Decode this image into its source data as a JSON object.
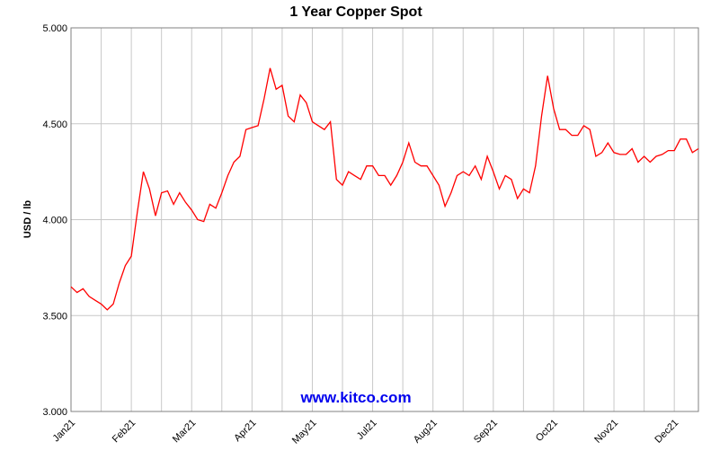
{
  "chart_data": {
    "type": "line",
    "title": "1 Year Copper Spot",
    "y_label": "USD / lb",
    "watermark": "www.kitco.com",
    "categories": [
      "Jan21",
      null,
      null,
      null,
      null,
      null,
      null,
      null,
      null,
      null,
      "Feb21",
      null,
      null,
      null,
      null,
      null,
      null,
      null,
      null,
      null,
      "Mar21",
      null,
      null,
      null,
      null,
      null,
      null,
      null,
      null,
      null,
      "Apr21",
      null,
      null,
      null,
      null,
      null,
      null,
      null,
      null,
      null,
      "May21",
      null,
      null,
      null,
      null,
      null,
      null,
      null,
      null,
      null,
      "Jul21",
      null,
      null,
      null,
      null,
      null,
      null,
      null,
      null,
      null,
      "Aug21",
      null,
      null,
      null,
      null,
      null,
      null,
      null,
      null,
      null,
      "Sep21",
      null,
      null,
      null,
      null,
      null,
      null,
      null,
      null,
      null,
      "Oct21",
      null,
      null,
      null,
      null,
      null,
      null,
      null,
      null,
      null,
      "Nov21",
      null,
      null,
      null,
      null,
      null,
      null,
      null,
      null,
      null,
      "Dec21",
      null,
      null,
      null,
      null
    ],
    "series": [
      {
        "color": "#ff0000",
        "values": [
          3.65,
          3.62,
          3.64,
          3.6,
          3.58,
          3.56,
          3.53,
          3.56,
          3.67,
          3.76,
          3.81,
          4.04,
          4.25,
          4.16,
          4.02,
          4.14,
          4.15,
          4.08,
          4.14,
          4.09,
          4.05,
          4.0,
          3.99,
          4.08,
          4.06,
          4.14,
          4.23,
          4.3,
          4.33,
          4.47,
          4.48,
          4.49,
          4.63,
          4.79,
          4.68,
          4.7,
          4.54,
          4.51,
          4.65,
          4.61,
          4.51,
          4.49,
          4.47,
          4.51,
          4.21,
          4.18,
          4.25,
          4.23,
          4.21,
          4.28,
          4.28,
          4.23,
          4.23,
          4.18,
          4.23,
          4.3,
          4.4,
          4.3,
          4.28,
          4.28,
          4.23,
          4.18,
          4.07,
          4.14,
          4.23,
          4.25,
          4.23,
          4.28,
          4.21,
          4.33,
          4.25,
          4.16,
          4.23,
          4.21,
          4.11,
          4.16,
          4.14,
          4.28,
          4.54,
          4.75,
          4.58,
          4.47,
          4.47,
          4.44,
          4.44,
          4.49,
          4.47,
          4.33,
          4.35,
          4.4,
          4.35,
          4.34,
          4.34,
          4.37,
          4.3,
          4.33,
          4.3,
          4.33,
          4.34,
          4.36,
          4.36,
          4.42,
          4.42,
          4.35,
          4.37
        ]
      }
    ],
    "ylim": [
      3,
      5
    ],
    "yticks": [
      {
        "value": 3,
        "label": "3.000"
      },
      {
        "value": 3.5,
        "label": "3.500"
      },
      {
        "value": 4,
        "label": "4.000"
      },
      {
        "value": 4.5,
        "label": "4.500"
      },
      {
        "value": 5,
        "label": "5.000"
      }
    ],
    "grid": true
  }
}
